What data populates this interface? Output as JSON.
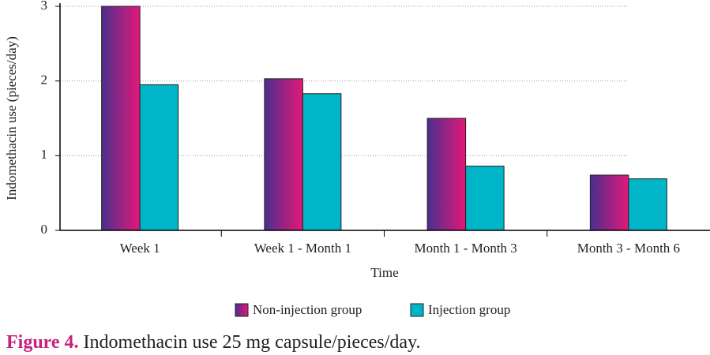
{
  "chart_data": {
    "type": "bar",
    "x_label": "Time",
    "y_label": "Indomethacin use (pieces/day)",
    "categories": [
      "Week 1",
      "Week 1 - Month 1",
      "Month 1 - Month 3",
      "Month 3 - Month 6"
    ],
    "series": [
      {
        "name": "Non-injection group",
        "colors": [
          "#4a2f8c",
          "#e3187a"
        ],
        "values": [
          3.0,
          2.03,
          1.5,
          0.74
        ]
      },
      {
        "name": "Injection group",
        "color": "#00b5c8",
        "values": [
          1.95,
          1.83,
          0.86,
          0.69
        ]
      }
    ],
    "ylim": [
      0,
      3
    ],
    "yticks": [
      0,
      1,
      2,
      3
    ],
    "grid": true
  },
  "caption": {
    "label": "Figure 4.",
    "text": "Indomethacin use 25 mg capsule/pieces/day."
  }
}
